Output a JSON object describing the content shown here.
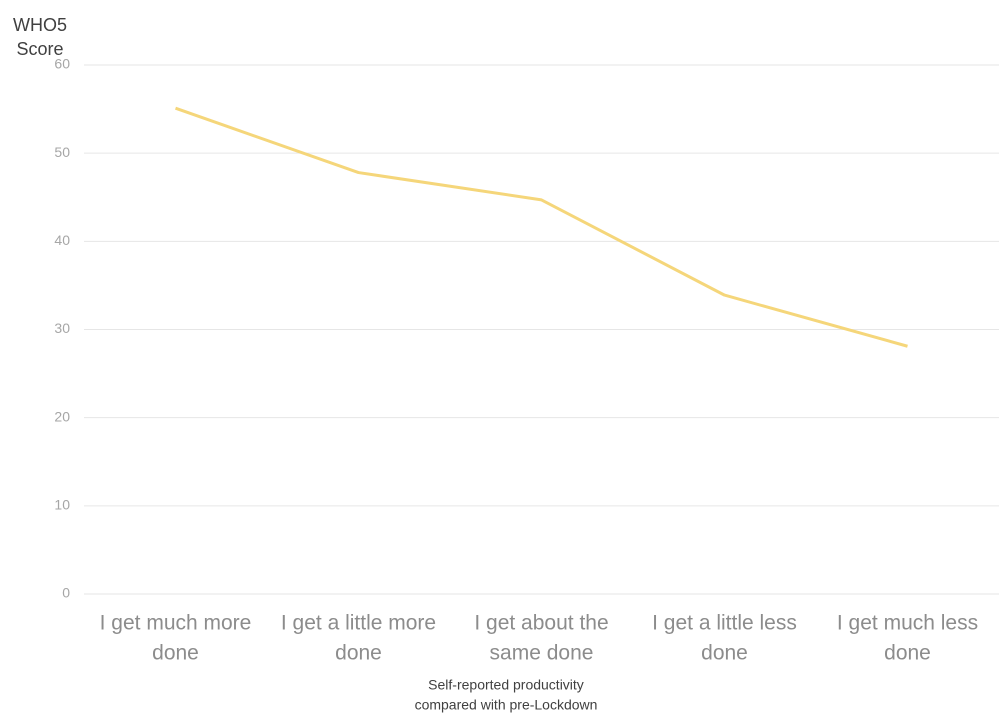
{
  "chart_data": {
    "type": "line",
    "y_label": [
      "WHO5",
      "Score"
    ],
    "x_label": [
      "Self-reported productivity",
      "compared with pre-Lockdown"
    ],
    "categories": [
      [
        "I get much more",
        "done"
      ],
      [
        "I get a little more",
        "done"
      ],
      [
        "I get about the",
        "same done"
      ],
      [
        "I get a little less",
        "done"
      ],
      [
        "I get much less",
        "done"
      ]
    ],
    "values": [
      55.1,
      47.8,
      44.7,
      33.9,
      28.1
    ],
    "color": "#f5d67a",
    "ylim": [
      0,
      60
    ],
    "yticks": [
      0,
      10,
      20,
      30,
      40,
      50,
      60
    ],
    "grid": true
  }
}
